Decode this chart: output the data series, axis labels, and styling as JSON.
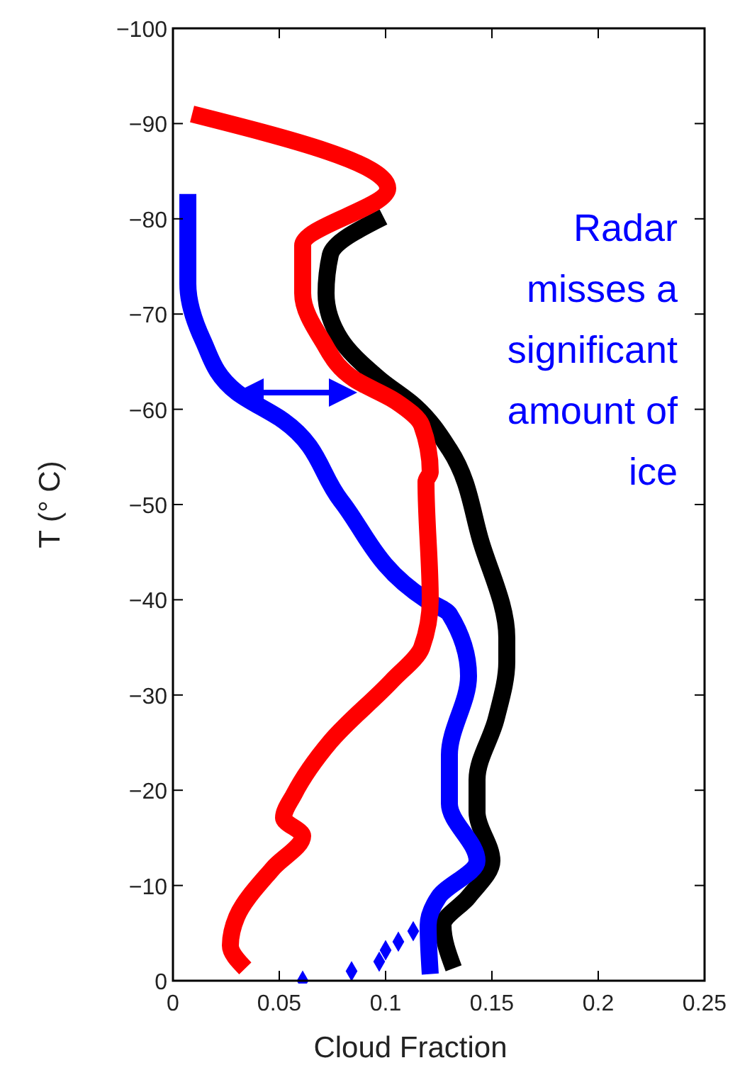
{
  "chart_data": {
    "type": "line",
    "xlabel": "Cloud Fraction",
    "ylabel": "T (° C)",
    "xlim": [
      0,
      0.25
    ],
    "xticks": [
      0,
      0.05,
      0.1,
      0.15,
      0.2,
      0.25
    ],
    "ylim": [
      0,
      -100
    ],
    "yticks": [
      0,
      -10,
      -20,
      -30,
      -40,
      -50,
      -60,
      -70,
      -80,
      -90,
      -100
    ],
    "grid": false,
    "line_style": "solid",
    "annotations": [
      "Radar misses a significant amount of ice"
    ],
    "series": [
      {
        "color": "#000000",
        "x": [
          0.132,
          0.127,
          0.139,
          0.15,
          0.143,
          0.143,
          0.152,
          0.157,
          0.157,
          0.145,
          0.13,
          0.114,
          0.097,
          0.079,
          0.072,
          0.074,
          0.099
        ],
        "values": [
          -1.3,
          -5.8,
          -8.8,
          -12.6,
          -17.7,
          -21.1,
          -27.5,
          -33.5,
          -36,
          -46,
          -55.8,
          -60.3,
          -63.2,
          -67.3,
          -72.2,
          -76.2,
          -80.2
        ]
      },
      {
        "color": "#0000ff",
        "x": [
          0.121,
          0.12,
          0.125,
          0.143,
          0.13,
          0.13,
          0.139,
          0.13,
          0.119,
          0.079,
          0.052,
          0.03,
          0.014,
          0.007,
          0.007
        ],
        "values": [
          -0.7,
          -5.8,
          -8.8,
          -12.6,
          -18.6,
          -23.7,
          -32,
          -38.5,
          -40,
          -50.4,
          -58.8,
          -61.8,
          -67.3,
          -73.2,
          -82.6
        ]
      },
      {
        "color": "#ff0000",
        "x": [
          0.034,
          0.027,
          0.03,
          0.047,
          0.061,
          0.052,
          0.057,
          0.074,
          0.103,
          0.117,
          0.121,
          0.119,
          0.121,
          0.117,
          0.105,
          0.085,
          0.07,
          0.061,
          0.061,
          0.101,
          0.009
        ],
        "values": [
          -1.3,
          -3.7,
          -6.7,
          -11.8,
          -15.2,
          -17.1,
          -19.6,
          -25.1,
          -31.5,
          -35,
          -40,
          -52.4,
          -53.4,
          -58.3,
          -60.8,
          -63.2,
          -67.3,
          -72.2,
          -77.2,
          -83.2,
          -91
        ]
      },
      {
        "type": "scatter",
        "marker": "diamond",
        "color": "#0000ff",
        "x": [
          0.061,
          0.084,
          0.097,
          0.1,
          0.106,
          0.113
        ],
        "values": [
          0,
          -1,
          -2,
          -3.2,
          -4.1,
          -5.2
        ]
      }
    ]
  }
}
